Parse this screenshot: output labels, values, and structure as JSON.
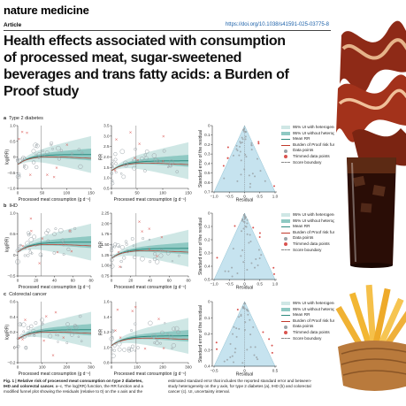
{
  "header": {
    "journal": "nature medicine",
    "article_type": "Article",
    "doi": "https://doi.org/10.1038/s41591-025-03775-8"
  },
  "headline": {
    "line1": "Health effects associated with consumption",
    "line2": "of processed meat, sugar-sweetened",
    "line3": "beverages and trans fatty acids: a Burden of",
    "line4": "Proof study"
  },
  "rows": [
    {
      "letter": "a",
      "label": "Type 2 diabetes",
      "log_ticks": [
        "1.0",
        "0.5",
        "0",
        "−0.5",
        "−1.0"
      ],
      "rr_ticks": [
        "3.5",
        "3.0",
        "2.5",
        "2.0",
        "1.5",
        "1.0",
        "0.5"
      ],
      "x_ticks": [
        "0",
        "50",
        "100",
        "150"
      ],
      "funnel_ticks": [
        "−1.0",
        "−0.5",
        "0",
        "0.5",
        "1.0"
      ],
      "se_ticks": [
        "0",
        "0.1",
        "0.2",
        "0.3",
        "0.4",
        "0.5",
        "0.6",
        "0.7"
      ]
    },
    {
      "letter": "b",
      "label": "IHD",
      "log_ticks": [
        "1.0",
        "0.5",
        "0",
        "−0.5"
      ],
      "rr_ticks": [
        "2.25",
        "2.00",
        "1.75",
        "1.50",
        "1.25",
        "1.00",
        "0.75"
      ],
      "x_ticks": [
        "0",
        "20",
        "40",
        "60",
        "80"
      ],
      "funnel_ticks": [
        "−1.0",
        "−0.5",
        "0",
        "0.5",
        "1.0"
      ],
      "se_ticks": [
        "0",
        "0.1",
        "0.2",
        "0.3",
        "0.4",
        "0.5"
      ]
    },
    {
      "letter": "c",
      "label": "Colorectal cancer",
      "log_ticks": [
        "0.6",
        "0.4",
        "0.2",
        "0",
        "−0.2"
      ],
      "rr_ticks": [
        "1.6",
        "1.4",
        "1.2",
        "1.0",
        "0.8"
      ],
      "x_ticks": [
        "0",
        "100",
        "200",
        "300"
      ],
      "funnel_ticks": [
        "−0.5",
        "0",
        "0.5"
      ],
      "se_ticks": [
        "0",
        "0.1",
        "0.2",
        "0.3",
        "0.4"
      ]
    }
  ],
  "axes": {
    "log_rr": "log(RR)",
    "rr": "RR",
    "x": "Processed meat consumption (g d⁻¹)",
    "residual": "Residual",
    "se": "Standard error of the residual"
  },
  "legend": [
    {
      "label": "95% UI with heterogeneity",
      "swatch": "band-light"
    },
    {
      "label": "95% UI without heterogeneity",
      "swatch": "band-dark"
    },
    {
      "label": "Mean RR",
      "swatch": "line"
    },
    {
      "label": "Burden of Proof risk function",
      "swatch": "red"
    },
    {
      "label": "Data points",
      "swatch": "dot-grey"
    },
    {
      "label": "Trimmed data points",
      "swatch": "dot-red"
    },
    {
      "label": "Score boundary",
      "swatch": "dash"
    }
  ],
  "caption": {
    "left_bold": "Fig. 1 | Relative risk of processed meat consumption on type 2 diabetes,",
    "left_bold2": "IHD and colorectal cancer.",
    "left_rest": " a–c, The log(RR) function, the RR function and a",
    "left_line3": "modified funnel plot showing the residuals (relative to 0) on the x axis and the",
    "right_line1": "estimated standard error that includes the reported standard error and between-",
    "right_line2": "study heterogeneity on the y axis, for type 2 diabetes (a), IHD (b) and colorectal",
    "right_line3": "cancer (c). UI, uncertainty interval."
  },
  "colors": {
    "band_light": "#cfe7e5",
    "band_dark": "#8fc9c3",
    "mean_line": "#2f8a7e",
    "bop": "#c0392b",
    "funnel_fill": "#c6e3ef",
    "data_point": "#9aa3a8",
    "trimmed_point": "#d9534f"
  }
}
